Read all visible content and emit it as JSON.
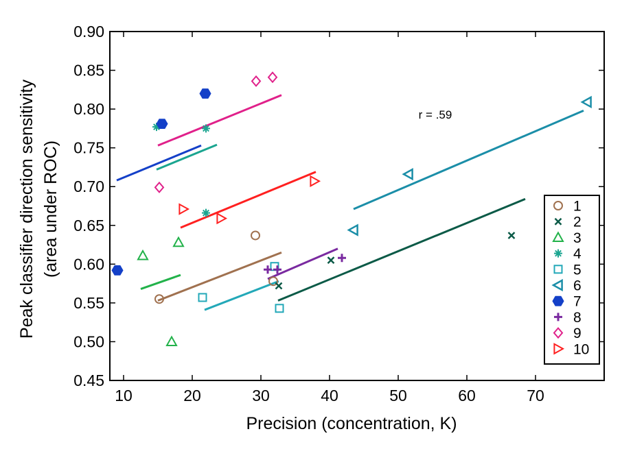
{
  "chart_data": {
    "type": "scatter",
    "xlabel": "Precision (concentration, K)",
    "ylabel_line1": "Peak classifier direction sensitivity",
    "ylabel_line2": "(area under ROC)",
    "annotation": "r = .59",
    "xlim": [
      8,
      80
    ],
    "ylim": [
      0.45,
      0.9
    ],
    "xticks": [
      10,
      20,
      30,
      40,
      50,
      60,
      70
    ],
    "xtick_labels": [
      "10",
      "20",
      "30",
      "40",
      "50",
      "60",
      "70"
    ],
    "yticks": [
      0.45,
      0.5,
      0.55,
      0.6,
      0.65,
      0.7,
      0.75,
      0.8,
      0.85,
      0.9
    ],
    "ytick_labels": [
      "0.45",
      "0.50",
      "0.55",
      "0.60",
      "0.65",
      "0.70",
      "0.75",
      "0.80",
      "0.85",
      "0.90"
    ],
    "grid": false,
    "legend_position": "bottom-right",
    "series": [
      {
        "name": "1",
        "color": "#a0714f",
        "marker": "circle",
        "points": [
          [
            15.2,
            0.555
          ],
          [
            29.2,
            0.637
          ],
          [
            31.8,
            0.578
          ]
        ],
        "fit": [
          [
            15.0,
            0.553
          ],
          [
            33.0,
            0.615
          ]
        ]
      },
      {
        "name": "2",
        "color": "#0b5a47",
        "marker": "x",
        "points": [
          [
            32.6,
            0.572
          ],
          [
            40.2,
            0.605
          ],
          [
            66.5,
            0.637
          ]
        ],
        "fit": [
          [
            32.5,
            0.553
          ],
          [
            68.5,
            0.684
          ]
        ]
      },
      {
        "name": "3",
        "color": "#22b24a",
        "marker": "triangle-up",
        "points": [
          [
            12.8,
            0.611
          ],
          [
            18.0,
            0.628
          ],
          [
            17.0,
            0.5
          ]
        ],
        "fit": [
          [
            12.5,
            0.568
          ],
          [
            18.3,
            0.586
          ]
        ]
      },
      {
        "name": "4",
        "color": "#1aa590",
        "marker": "asterisk",
        "points": [
          [
            14.8,
            0.777
          ],
          [
            22.0,
            0.775
          ],
          [
            22.0,
            0.666
          ]
        ],
        "fit": [
          [
            14.8,
            0.722
          ],
          [
            23.6,
            0.754
          ]
        ]
      },
      {
        "name": "5",
        "color": "#23a8b8",
        "marker": "square",
        "points": [
          [
            21.5,
            0.557
          ],
          [
            32.0,
            0.597
          ],
          [
            32.7,
            0.543
          ]
        ],
        "fit": [
          [
            21.8,
            0.541
          ],
          [
            32.6,
            0.578
          ]
        ]
      },
      {
        "name": "6",
        "color": "#1b8ea8",
        "marker": "triangle-left",
        "points": [
          [
            43.5,
            0.644
          ],
          [
            51.5,
            0.716
          ],
          [
            77.5,
            0.809
          ]
        ],
        "fit": [
          [
            43.5,
            0.671
          ],
          [
            77.0,
            0.798
          ]
        ]
      },
      {
        "name": "7",
        "color": "#1440c8",
        "marker": "hexagon-filled",
        "points": [
          [
            9.1,
            0.592
          ],
          [
            15.6,
            0.781
          ],
          [
            21.9,
            0.82
          ]
        ],
        "fit": [
          [
            9.0,
            0.708
          ],
          [
            21.3,
            0.753
          ]
        ]
      },
      {
        "name": "8",
        "color": "#7a2aa0",
        "marker": "plus",
        "points": [
          [
            31.0,
            0.593
          ],
          [
            32.4,
            0.593
          ],
          [
            41.8,
            0.608
          ]
        ],
        "fit": [
          [
            31.0,
            0.581
          ],
          [
            41.2,
            0.62
          ]
        ]
      },
      {
        "name": "9",
        "color": "#e0208a",
        "marker": "diamond",
        "points": [
          [
            15.2,
            0.699
          ],
          [
            29.3,
            0.836
          ],
          [
            31.7,
            0.841
          ]
        ],
        "fit": [
          [
            15.0,
            0.753
          ],
          [
            33.0,
            0.818
          ]
        ]
      },
      {
        "name": "10",
        "color": "#ff2020",
        "marker": "triangle-right",
        "points": [
          [
            18.7,
            0.671
          ],
          [
            24.2,
            0.659
          ],
          [
            37.8,
            0.707
          ]
        ],
        "fit": [
          [
            18.3,
            0.647
          ],
          [
            38.0,
            0.719
          ]
        ]
      }
    ]
  }
}
